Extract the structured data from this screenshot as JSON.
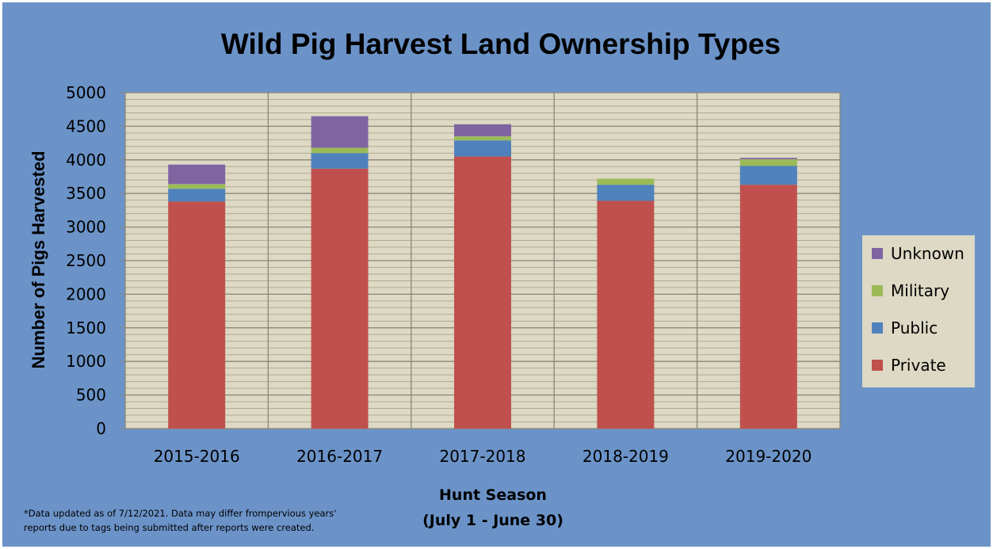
{
  "colors": {
    "background": "#6b93c8",
    "plot_area": "#ddd9c4",
    "minor_grid": "#b3ab8f",
    "major_grid": "#8a8677",
    "Private": "#c0504d",
    "Public": "#4f81bd",
    "Military": "#9bbb59",
    "Unknown": "#8064a2"
  },
  "footnote": {
    "line1": "*Data updated as of 7/12/2021. Data may differ frompervious years'",
    "line2": "reports due to tags being submitted after reports were created."
  },
  "chart_data": {
    "type": "bar",
    "stacked": true,
    "title": "Wild Pig Harvest Land Ownership Types",
    "xlabel": "Hunt Season",
    "xlabel_line2": "(July 1 - June 30)",
    "ylabel": "Number of Pigs Harvested",
    "ylim": [
      0,
      5000
    ],
    "y_ticks": [
      "0",
      "500",
      "1000",
      "1500",
      "2000",
      "2500",
      "3000",
      "3500",
      "4000",
      "4500",
      "5000"
    ],
    "categories": [
      "2015-2016",
      "2016-2017",
      "2017-2018",
      "2018-2019",
      "2019-2020"
    ],
    "series": [
      {
        "name": "Private",
        "values": [
          3380,
          3870,
          4050,
          3390,
          3630
        ]
      },
      {
        "name": "Public",
        "values": [
          190,
          230,
          240,
          240,
          280
        ]
      },
      {
        "name": "Military",
        "values": [
          70,
          80,
          60,
          90,
          100
        ]
      },
      {
        "name": "Unknown",
        "values": [
          290,
          470,
          180,
          0,
          20
        ]
      }
    ],
    "legend_order": [
      "Unknown",
      "Military",
      "Public",
      "Private"
    ],
    "legend_position": "right",
    "grid": true
  }
}
